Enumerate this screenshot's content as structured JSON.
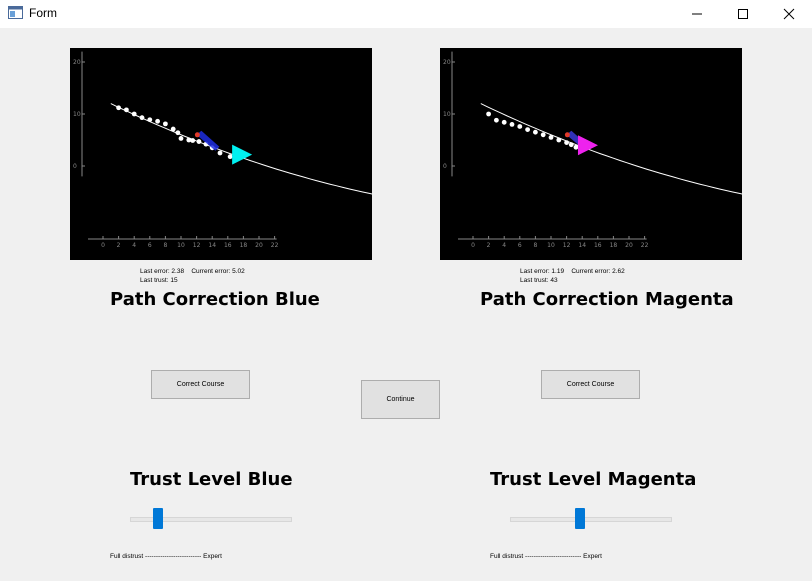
{
  "window": {
    "title": "Form",
    "icons": {
      "app": "form-window-icon",
      "minimize": "minimize-icon",
      "maximize": "maximize-icon",
      "close": "close-icon"
    }
  },
  "panels": {
    "blue": {
      "plot": {
        "x_ticks": [
          "0",
          "2",
          "4",
          "6",
          "8",
          "10",
          "12",
          "14",
          "16",
          "18",
          "20",
          "22"
        ],
        "y_ticks": [
          "20",
          "10",
          "0"
        ],
        "xlim": [
          -2,
          22.5
        ],
        "ylim": [
          -13,
          22
        ],
        "trail": [
          [
            2,
            11.2
          ],
          [
            3,
            10.8
          ],
          [
            4,
            10
          ],
          [
            5,
            9.3
          ],
          [
            6,
            8.9
          ],
          [
            7,
            8.6
          ],
          [
            8,
            8.1
          ],
          [
            9,
            7.1
          ],
          [
            9.6,
            6.4
          ],
          [
            10,
            5.3
          ],
          [
            11,
            5
          ],
          [
            11.5,
            4.9
          ],
          [
            12.3,
            4.7
          ],
          [
            13.2,
            4.2
          ],
          [
            14,
            3.5
          ],
          [
            15,
            2.5
          ],
          [
            16.3,
            1.8
          ]
        ],
        "trail_fill": "#ffffff",
        "path_fill": "#1f2ee0",
        "ship_color": "#00f0f0",
        "marker_color": "#e03a2a"
      },
      "last_error_label": "Last error: 2.38",
      "current_error_label": "Current error: 5.02",
      "last_trust_label": "Last trust: 15",
      "heading": "Path Correction Blue",
      "correct_button": "Correct Course",
      "trust_heading": "Trust Level Blue",
      "trust_value": 0.15,
      "trust_scale": "Full distrust -------------------------- Expert"
    },
    "magenta": {
      "plot": {
        "x_ticks": [
          "0",
          "2",
          "4",
          "6",
          "8",
          "10",
          "12",
          "14",
          "16",
          "18",
          "20",
          "22"
        ],
        "y_ticks": [
          "20",
          "10",
          "0"
        ],
        "xlim": [
          -2,
          22.5
        ],
        "ylim": [
          -13,
          22
        ],
        "trail": [
          [
            2,
            10
          ],
          [
            3,
            8.8
          ],
          [
            4,
            8.4
          ],
          [
            5,
            8
          ],
          [
            6,
            7.6
          ],
          [
            7,
            7
          ],
          [
            8,
            6.5
          ],
          [
            9,
            6
          ],
          [
            10,
            5.5
          ],
          [
            11,
            5
          ],
          [
            12,
            4.5
          ],
          [
            12.6,
            4.1
          ],
          [
            13.2,
            3.6
          ]
        ],
        "trail_fill": "#ffffff",
        "path_fill": "#3a3ad8",
        "ship_color": "#ee22ee",
        "marker_color": "#e03a2a"
      },
      "last_error_label": "Last error: 1.19",
      "current_error_label": "Current error: 2.62",
      "last_trust_label": "Last trust: 43",
      "heading": "Path Correction Magenta",
      "correct_button": "Correct Course",
      "trust_heading": "Trust Level Magenta",
      "trust_value": 0.43,
      "trust_scale": "Full distrust -------------------------- Expert"
    }
  },
  "continue_button": "Continue"
}
